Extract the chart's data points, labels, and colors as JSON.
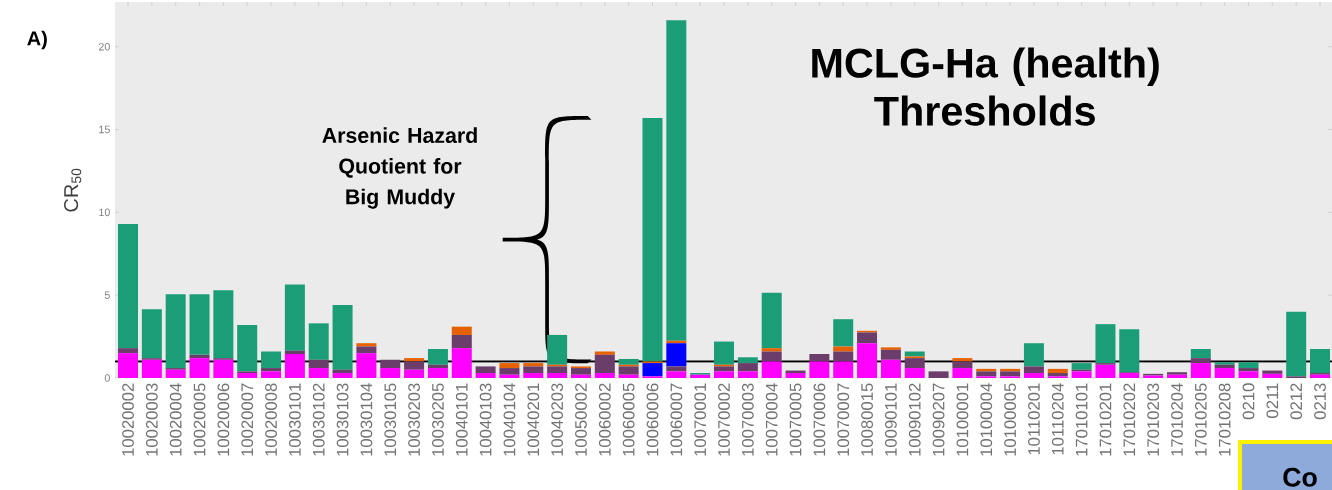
{
  "chart_data": {
    "type": "bar",
    "stacked": true,
    "title": "MCLG-Ha (health) Thresholds",
    "ylabel": "CR$_{50}$",
    "annotations": [
      "A)",
      "Arsenic Hazard Quotient for Big Muddy",
      "Co"
    ],
    "categories": [
      "10020002",
      "10020003",
      "10020004",
      "10020005",
      "10020006",
      "10020007",
      "10020008",
      "10030101",
      "10030102",
      "10030103",
      "10030104",
      "10030105",
      "10030203",
      "10030205",
      "10040101",
      "10040103",
      "10040104",
      "10040201",
      "10040203",
      "10050002",
      "10060002",
      "10060005",
      "10060006",
      "10060007",
      "10070001",
      "10070002",
      "10070003",
      "10070004",
      "10070005",
      "10070006",
      "10070007",
      "10080015",
      "10090101",
      "10090102",
      "10090207",
      "10100001",
      "10100004",
      "10100005",
      "10110201",
      "10110204",
      "17010101",
      "17010201",
      "17010202",
      "17010203",
      "17010204",
      "17010205",
      "17010208",
      "0210",
      "0211",
      "0212",
      "0213"
    ],
    "series": [
      {
        "color": "#ff00ff",
        "values": [
          1.5,
          1.1,
          0.5,
          1.2,
          1.1,
          0.3,
          0.4,
          1.45,
          0.6,
          0.3,
          1.5,
          0.6,
          0.5,
          0.6,
          1.8,
          0.3,
          0.2,
          0.3,
          0.3,
          0.2,
          0.3,
          0.2,
          0.1,
          0.4,
          0.2,
          0.4,
          0.4,
          1.0,
          0.3,
          1.0,
          1.0,
          2.1,
          1.1,
          0.6,
          0,
          0.6,
          0.1,
          0.1,
          0.3,
          0.1,
          0.4,
          0.8,
          0.3,
          0.15,
          0.2,
          0.9,
          0.6,
          0.4,
          0.25,
          0,
          0.2
        ]
      },
      {
        "color": "#6a3d6b",
        "values": [
          0.3,
          0.1,
          0.1,
          0.2,
          0.1,
          0.1,
          0.2,
          0.2,
          0.5,
          0.2,
          0.4,
          0.5,
          0.5,
          0.2,
          0.8,
          0.4,
          0.4,
          0.4,
          0.4,
          0.4,
          1.1,
          0.5,
          0,
          0.3,
          0,
          0.3,
          0.5,
          0.6,
          0.15,
          0.45,
          0.6,
          0.65,
          0.6,
          0.6,
          0.4,
          0.4,
          0.3,
          0.3,
          0.4,
          0.2,
          0.1,
          0.1,
          0.05,
          0.1,
          0.15,
          0.3,
          0.2,
          0.2,
          0.2,
          0.1,
          0.1
        ]
      },
      {
        "color": "#0000ff",
        "values": [
          0,
          0,
          0,
          0,
          0,
          0,
          0,
          0,
          0,
          0,
          0,
          0,
          0,
          0,
          0,
          0,
          0,
          0,
          0,
          0,
          0,
          0,
          0.8,
          1.4,
          0,
          0,
          0,
          0,
          0,
          0,
          0,
          0,
          0,
          0,
          0,
          0,
          0,
          0,
          0,
          0,
          0,
          0,
          0,
          0,
          0,
          0,
          0,
          0,
          0,
          0,
          0
        ]
      },
      {
        "color": "#e66101",
        "values": [
          0,
          0,
          0,
          0,
          0,
          0,
          0,
          0,
          0,
          0,
          0.2,
          0,
          0.2,
          0,
          0.5,
          0,
          0.3,
          0.2,
          0.1,
          0.1,
          0.2,
          0.1,
          0.1,
          0.15,
          0,
          0.1,
          0,
          0.2,
          0,
          0,
          0.3,
          0.1,
          0.15,
          0.1,
          0,
          0.2,
          0.15,
          0.15,
          0,
          0.25,
          0,
          0,
          0,
          0,
          0,
          0,
          0,
          0,
          0,
          0,
          0
        ]
      },
      {
        "color": "#1b9e77",
        "values": [
          7.5,
          2.95,
          4.45,
          3.65,
          4.1,
          2.8,
          1.0,
          4.0,
          2.2,
          3.9,
          0,
          0,
          0,
          0.95,
          0,
          0,
          0,
          0,
          1.8,
          0,
          0,
          0.35,
          14.7,
          19.35,
          0.1,
          1.4,
          0.35,
          3.35,
          0,
          0,
          1.65,
          0,
          0,
          0.3,
          0,
          0,
          0,
          0,
          1.4,
          0,
          0.4,
          2.35,
          2.6,
          0,
          0,
          0.55,
          0.15,
          0.35,
          0,
          3.9,
          1.45
        ]
      }
    ],
    "ylim": [
      0,
      22.7
    ],
    "yticks": [
      0,
      5,
      10,
      15,
      20
    ],
    "ref_lines": [
      {
        "axis": "y",
        "value": 1,
        "color": "#000000"
      }
    ]
  }
}
